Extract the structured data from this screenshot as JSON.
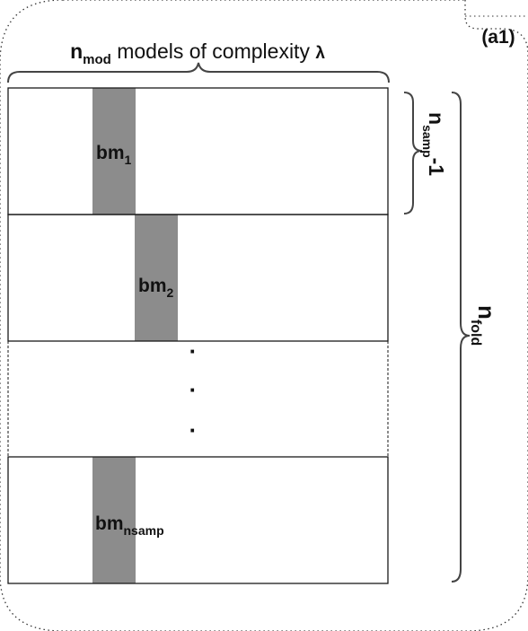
{
  "panel_label": "(a1)",
  "header": {
    "n": "n",
    "n_sub": "mod",
    "text": " models of complexity ",
    "lambda": "λ"
  },
  "rows": [
    {
      "base": "bm",
      "sub": "1"
    },
    {
      "base": "bm",
      "sub": "2"
    },
    {
      "dots": [
        "·",
        "·",
        "·"
      ]
    },
    {
      "base": "bm",
      "sub": "nsamp"
    }
  ],
  "right_inner": {
    "n": "n",
    "sub": "samp",
    "suffix": "-1"
  },
  "right_outer": {
    "n": "n",
    "sub": "fold"
  },
  "colors": {
    "band": "#8c8c8c",
    "stroke": "#1a1a1a"
  }
}
